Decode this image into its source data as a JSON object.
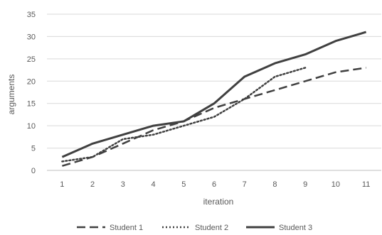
{
  "chart_data": {
    "type": "line",
    "title": "",
    "xlabel": "iteration",
    "ylabel": "arguments",
    "categories": [
      "1",
      "2",
      "3",
      "4",
      "5",
      "6",
      "7",
      "8",
      "9",
      "10",
      "11"
    ],
    "ylim": [
      0,
      35
    ],
    "yticks": [
      "0",
      "5",
      "10",
      "15",
      "20",
      "25",
      "30",
      "35"
    ],
    "grid": true,
    "legend_position": "bottom",
    "series": [
      {
        "name": "Student 1",
        "style": "dashed",
        "color": "#404040",
        "values": [
          1,
          3,
          6,
          9,
          11,
          14,
          16,
          18,
          20,
          22,
          23
        ]
      },
      {
        "name": "Student 2",
        "style": "dotted",
        "color": "#404040",
        "values": [
          2,
          3,
          7,
          8,
          10,
          12,
          16,
          21,
          23,
          null,
          null
        ]
      },
      {
        "name": "Student 3",
        "style": "solid",
        "color": "#404040",
        "values": [
          3,
          6,
          8,
          10,
          11,
          15,
          21,
          24,
          26,
          29,
          31
        ]
      }
    ]
  }
}
